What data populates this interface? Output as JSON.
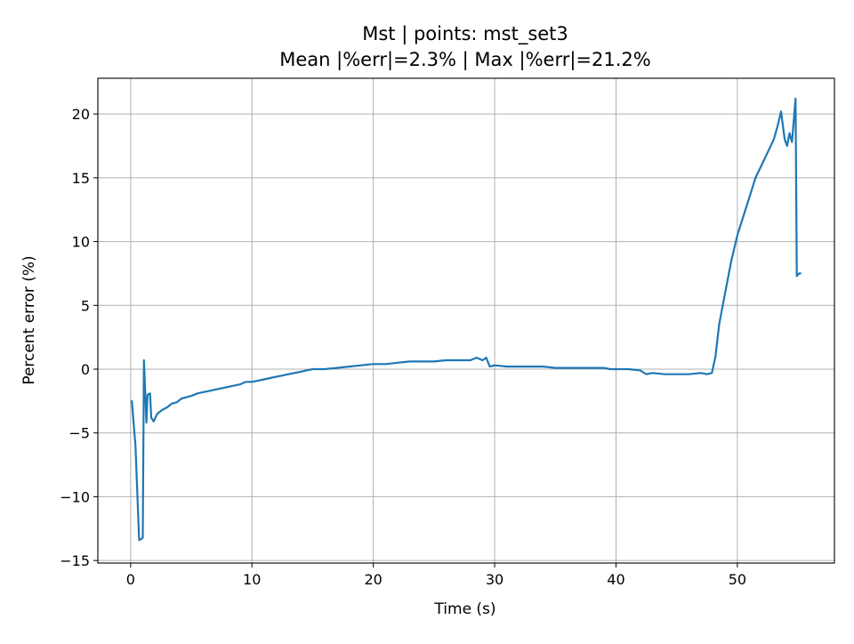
{
  "chart_data": {
    "type": "line",
    "title": "Mst | points: mst_set3",
    "subtitle": "Mean |%err|=2.3% | Max |%err|=21.2%",
    "xlabel": "Time (s)",
    "ylabel": "Percent error (%)",
    "xlim": [
      -2.7,
      58
    ],
    "ylim": [
      -15.2,
      22.8
    ],
    "xticks": [
      0,
      10,
      20,
      30,
      40,
      50
    ],
    "yticks": [
      -15,
      -10,
      -5,
      0,
      5,
      10,
      15,
      20
    ],
    "ytick_labels": [
      "−15",
      "−10",
      "−5",
      "0",
      "5",
      "10",
      "15",
      "20"
    ],
    "grid": true,
    "line_color": "#1f77b4",
    "series": [
      {
        "x": [
          0.1,
          0.4,
          0.7,
          0.9,
          1.0,
          1.1,
          1.3,
          1.4,
          1.6,
          1.7,
          1.9,
          2.2,
          2.6,
          3.0,
          3.4,
          3.8,
          4.2,
          4.6,
          5.0,
          5.5,
          6.0,
          6.5,
          7.0,
          7.5,
          8.0,
          8.5,
          9.0,
          9.5,
          10.0,
          10.5,
          11.0,
          11.5,
          12.0,
          12.5,
          13.0,
          13.5,
          14.0,
          14.5,
          15.0,
          16.0,
          17.0,
          18.0,
          19.0,
          20.0,
          21.0,
          22.0,
          23.0,
          24.0,
          25.0,
          26.0,
          27.0,
          28.0,
          28.5,
          29.0,
          29.3,
          29.6,
          30.0,
          31.0,
          32.0,
          33.0,
          34.0,
          35.0,
          36.0,
          37.0,
          38.0,
          39.0,
          39.5,
          40.0,
          41.0,
          42.0,
          42.5,
          43.0,
          44.0,
          45.0,
          46.0,
          47.0,
          47.5,
          47.9,
          48.2,
          48.5,
          49.0,
          49.5,
          50.0,
          50.5,
          51.0,
          51.5,
          52.0,
          52.5,
          53.0,
          53.3,
          53.6,
          53.9,
          54.1,
          54.3,
          54.5,
          54.8,
          54.9,
          55.1,
          55.2
        ],
        "y": [
          -2.5,
          -6.0,
          -13.4,
          -13.3,
          -13.2,
          0.7,
          -4.2,
          -2.0,
          -1.9,
          -3.8,
          -4.1,
          -3.5,
          -3.2,
          -3.0,
          -2.7,
          -2.6,
          -2.3,
          -2.2,
          -2.1,
          -1.9,
          -1.8,
          -1.7,
          -1.6,
          -1.5,
          -1.4,
          -1.3,
          -1.2,
          -1.0,
          -1.0,
          -0.9,
          -0.8,
          -0.7,
          -0.6,
          -0.5,
          -0.4,
          -0.3,
          -0.2,
          -0.1,
          0.0,
          0.0,
          0.1,
          0.2,
          0.3,
          0.4,
          0.4,
          0.5,
          0.6,
          0.6,
          0.6,
          0.7,
          0.7,
          0.7,
          0.9,
          0.7,
          0.9,
          0.2,
          0.3,
          0.2,
          0.2,
          0.2,
          0.2,
          0.1,
          0.1,
          0.1,
          0.1,
          0.1,
          0.0,
          0.0,
          0.0,
          -0.1,
          -0.4,
          -0.3,
          -0.4,
          -0.4,
          -0.4,
          -0.3,
          -0.4,
          -0.3,
          1.0,
          3.5,
          6.0,
          8.5,
          10.5,
          12.0,
          13.5,
          15.0,
          16.0,
          17.0,
          18.0,
          19.0,
          20.2,
          18.0,
          17.5,
          18.5,
          17.8,
          21.2,
          7.3,
          7.5,
          7.5
        ]
      }
    ]
  }
}
